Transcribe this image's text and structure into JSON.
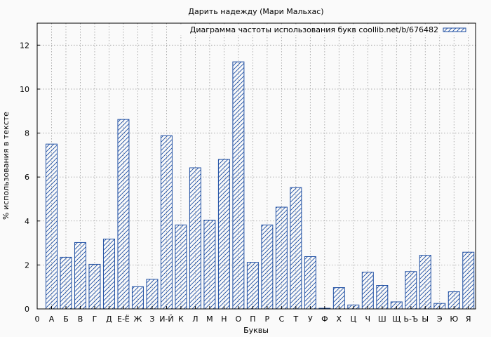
{
  "chart_data": {
    "type": "bar",
    "title": "Дарить надежду (Мари Мальхас)",
    "xlabel": "Буквы",
    "ylabel": "% использования в тексте",
    "ylim": [
      0,
      13
    ],
    "yticks": [
      0,
      2,
      4,
      6,
      8,
      10,
      12
    ],
    "grid": true,
    "legend_position": "top-right",
    "x_start_label": "0",
    "categories": [
      "А",
      "Б",
      "В",
      "Г",
      "Д",
      "Е-Ё",
      "Ж",
      "З",
      "И-Й",
      "К",
      "Л",
      "М",
      "Н",
      "О",
      "П",
      "Р",
      "С",
      "Т",
      "У",
      "Ф",
      "Х",
      "Ц",
      "Ч",
      "Ш",
      "Щ",
      "Ь-Ъ",
      "Ы",
      "Э",
      "Ю",
      "Я"
    ],
    "series": [
      {
        "name": "Диаграмма частоты использования букв coollib.net/b/676482",
        "color": "#1f4fa3",
        "values": [
          7.5,
          2.35,
          3.02,
          2.03,
          3.18,
          8.62,
          1.01,
          1.35,
          7.88,
          3.82,
          6.42,
          4.04,
          6.8,
          11.24,
          2.12,
          3.82,
          4.63,
          5.52,
          2.38,
          0.03,
          0.97,
          0.18,
          1.67,
          1.07,
          0.32,
          1.7,
          2.44,
          0.25,
          0.78,
          2.58
        ]
      }
    ]
  }
}
